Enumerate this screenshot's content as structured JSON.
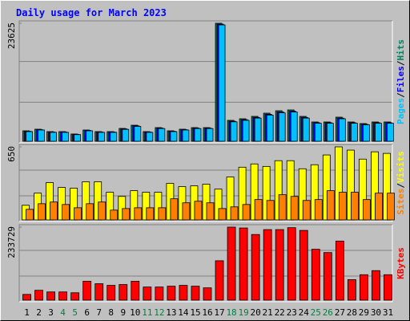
{
  "chart_data": {
    "type": "bar",
    "title": "Daily usage for March 2023",
    "legend_separator": "/",
    "categories": [
      "1",
      "2",
      "3",
      "4",
      "5",
      "6",
      "7",
      "8",
      "9",
      "10",
      "11",
      "12",
      "13",
      "14",
      "15",
      "16",
      "17",
      "18",
      "19",
      "20",
      "21",
      "22",
      "23",
      "24",
      "25",
      "26",
      "27",
      "28",
      "29",
      "30",
      "31"
    ],
    "category_colors": [
      "#000000",
      "#000000",
      "#000000",
      "#008040",
      "#008040",
      "#000000",
      "#000000",
      "#000000",
      "#000000",
      "#000000",
      "#008040",
      "#008040",
      "#000000",
      "#000000",
      "#000000",
      "#000000",
      "#000000",
      "#008040",
      "#008040",
      "#000000",
      "#000000",
      "#000000",
      "#000000",
      "#000000",
      "#008040",
      "#008040",
      "#000000",
      "#000000",
      "#000000",
      "#000000",
      "#000000"
    ],
    "panels": [
      {
        "ylim": [
          0,
          23625
        ],
        "yticks": [
          23625
        ],
        "series": [
          {
            "name": "Hits",
            "color": "#00805c",
            "values": [
              2090,
              2410,
              1930,
              1930,
              1450,
              2250,
              1930,
              1930,
              2570,
              3210,
              1930,
              2730,
              2090,
              2410,
              2730,
              2730,
              23625,
              4180,
              4500,
              4980,
              5620,
              6110,
              6270,
              4980,
              3860,
              3860,
              4820,
              3860,
              3540,
              3860,
              3860
            ]
          },
          {
            "name": "Files",
            "color": "#0000ff",
            "values": [
              2000,
              2310,
              1850,
              1850,
              1390,
              2160,
              1850,
              1850,
              2470,
              3080,
              1850,
              2620,
              2000,
              2310,
              2620,
              2620,
              23450,
              4010,
              4320,
              4780,
              5400,
              5870,
              6020,
              4780,
              3710,
              3710,
              4630,
              3710,
              3400,
              3710,
              3710
            ]
          },
          {
            "name": "Pages",
            "color": "#00c0ff",
            "values": [
              1930,
              2250,
              1780,
              1780,
              1330,
              2090,
              1780,
              1780,
              2380,
              2980,
              1780,
              2540,
              1930,
              2250,
              2540,
              2540,
              23300,
              3890,
              4190,
              4640,
              5240,
              5690,
              5850,
              4640,
              3600,
              3600,
              4500,
              3600,
              3300,
              3600,
              3600
            ]
          }
        ]
      },
      {
        "ylim": [
          0,
          650
        ],
        "yticks": [
          650
        ],
        "series": [
          {
            "name": "Visits",
            "color": "#ffff00",
            "values": [
              130,
              238,
              332,
              289,
              282,
              339,
              339,
              246,
              209,
              260,
              246,
              246,
              325,
              296,
              303,
              318,
              274,
              382,
              469,
              498,
              476,
              527,
              527,
              455,
              491,
              578,
              650,
              621,
              541,
              606,
              592
            ]
          },
          {
            "name": "Sites",
            "color": "#ff8000",
            "values": [
              94,
              144,
              159,
              137,
              108,
              144,
              159,
              87,
              101,
              108,
              108,
              108,
              188,
              152,
              166,
              152,
              101,
              116,
              137,
              181,
              173,
              224,
              209,
              173,
              181,
              260,
              246,
              246,
              181,
              238,
              238
            ]
          }
        ]
      },
      {
        "ylim": [
          0,
          233729
        ],
        "yticks": [
          233729
        ],
        "series": [
          {
            "name": "KBytes",
            "color": "#ff0000",
            "values": [
              18380,
              31500,
              26260,
              26260,
              23630,
              60400,
              52500,
              47270,
              49900,
              60400,
              42000,
              42000,
              44640,
              47270,
              44640,
              39390,
              126050,
              233729,
              231000,
              210100,
              225800,
              225800,
              232000,
              223200,
              162800,
              152300,
              189100,
              65650,
              81400,
              94500,
              81400
            ]
          }
        ]
      }
    ]
  }
}
